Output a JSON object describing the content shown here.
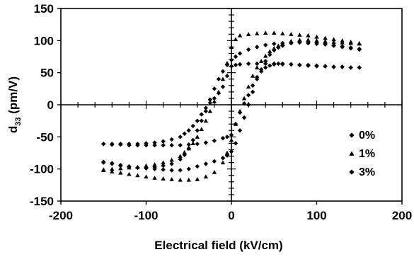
{
  "chart_data": {
    "type": "scatter",
    "title": "",
    "xlabel": "Electrical field (kV/cm)",
    "ylabel_main": "d",
    "ylabel_sub": "33",
    "ylabel_unit": " (pm/V)",
    "xlim": [
      -200,
      200
    ],
    "ylim": [
      -150,
      150
    ],
    "xticks": [
      -200,
      -100,
      0,
      100,
      200
    ],
    "yticks": [
      -150,
      -100,
      -50,
      0,
      50,
      100,
      150
    ],
    "grid": false,
    "legend_position": "lower-right",
    "series": [
      {
        "name": "0%",
        "marker": "diamond",
        "upper_x": [
          150,
          140,
          130,
          120,
          110,
          100,
          90,
          80,
          70,
          60,
          50,
          40,
          30,
          20,
          10,
          5,
          0,
          -5,
          -10,
          -15,
          -20,
          -25,
          -30,
          -35,
          -40,
          -45,
          -50,
          -55,
          -60,
          -70,
          -80,
          -90,
          -100,
          -110,
          -120,
          -130,
          -140,
          -150
        ],
        "upper_y": [
          58,
          58,
          59,
          59,
          60,
          61,
          62,
          62,
          63,
          63,
          64,
          64,
          64,
          64,
          63,
          62,
          60,
          45,
          28,
          18,
          10,
          3,
          -5,
          -15,
          -25,
          -33,
          -40,
          -45,
          -50,
          -54,
          -57,
          -59,
          -60,
          -61,
          -61,
          -61,
          -61,
          -61
        ],
        "lower_x": [
          -150,
          -140,
          -130,
          -120,
          -110,
          -100,
          -90,
          -80,
          -70,
          -60,
          -50,
          -40,
          -30,
          -20,
          -10,
          -5,
          0,
          5,
          10,
          15,
          20,
          25,
          30,
          35,
          40,
          45,
          50,
          55,
          60,
          70,
          80,
          90,
          100,
          110,
          120,
          130,
          140,
          150
        ],
        "lower_y": [
          -61,
          -62,
          -62,
          -63,
          -63,
          -63,
          -63,
          -63,
          -63,
          -63,
          -62,
          -61,
          -59,
          -56,
          -52,
          -50,
          -47,
          -30,
          -12,
          2,
          15,
          30,
          43,
          52,
          58,
          61,
          63,
          64,
          64,
          63,
          62,
          61,
          60,
          60,
          59,
          59,
          58,
          58
        ]
      },
      {
        "name": "1%",
        "marker": "triangle",
        "upper_x": [
          150,
          140,
          130,
          120,
          110,
          100,
          90,
          80,
          70,
          60,
          50,
          40,
          30,
          20,
          10,
          5,
          0,
          -5,
          -10,
          -15,
          -20,
          -25,
          -30,
          -35,
          -40,
          -45,
          -50,
          -55,
          -60,
          -70,
          -80,
          -90,
          -100,
          -110,
          -120,
          -130,
          -140,
          -150
        ],
        "upper_y": [
          96,
          98,
          100,
          102,
          104,
          106,
          108,
          109,
          110,
          111,
          112,
          112,
          111,
          110,
          108,
          102,
          90,
          65,
          40,
          20,
          5,
          -10,
          -25,
          -38,
          -50,
          -60,
          -68,
          -74,
          -80,
          -86,
          -90,
          -93,
          -95,
          -97,
          -98,
          -99,
          -100,
          -101
        ],
        "lower_x": [
          -150,
          -140,
          -130,
          -120,
          -110,
          -100,
          -90,
          -80,
          -70,
          -60,
          -50,
          -40,
          -30,
          -20,
          -10,
          -5,
          0,
          5,
          10,
          15,
          20,
          25,
          30,
          35,
          40,
          45,
          50,
          55,
          60,
          70,
          80,
          90,
          100,
          110,
          120,
          130,
          140,
          150
        ],
        "lower_y": [
          -102,
          -104,
          -106,
          -108,
          -110,
          -112,
          -114,
          -115,
          -116,
          -117,
          -117,
          -116,
          -112,
          -105,
          -90,
          -75,
          -55,
          -30,
          -10,
          10,
          28,
          45,
          58,
          68,
          76,
          83,
          88,
          92,
          95,
          99,
          101,
          101,
          100,
          99,
          98,
          97,
          96,
          95
        ]
      },
      {
        "name": "3%",
        "marker": "diamond",
        "upper_x": [
          150,
          140,
          130,
          120,
          110,
          100,
          90,
          80,
          70,
          60,
          50,
          40,
          30,
          20,
          10,
          5,
          0,
          -5,
          -10,
          -15,
          -20,
          -25,
          -30,
          -35,
          -40,
          -45,
          -50,
          -55,
          -60,
          -70,
          -80,
          -90,
          -100,
          -110,
          -120,
          -130,
          -140,
          -150
        ],
        "upper_y": [
          86,
          88,
          90,
          92,
          94,
          95,
          96,
          97,
          97,
          96,
          95,
          93,
          90,
          86,
          80,
          75,
          70,
          62,
          52,
          40,
          25,
          8,
          -10,
          -25,
          -40,
          -55,
          -68,
          -78,
          -85,
          -92,
          -95,
          -97,
          -98,
          -98,
          -97,
          -95,
          -92,
          -90
        ],
        "lower_x": [
          -150,
          -140,
          -130,
          -120,
          -110,
          -100,
          -90,
          -80,
          -70,
          -60,
          -50,
          -40,
          -30,
          -20,
          -10,
          -5,
          0,
          5,
          10,
          15,
          20,
          25,
          30,
          35,
          40,
          45,
          50,
          55,
          60,
          70,
          80,
          90,
          100,
          110,
          120,
          130,
          140,
          150
        ],
        "lower_y": [
          -89,
          -91,
          -94,
          -96,
          -98,
          -99,
          -100,
          -101,
          -102,
          -102,
          -100,
          -96,
          -92,
          -88,
          -83,
          -79,
          -73,
          -60,
          -40,
          -20,
          0,
          20,
          40,
          55,
          68,
          78,
          85,
          89,
          92,
          96,
          98,
          98,
          97,
          95,
          93,
          91,
          89,
          87
        ]
      }
    ],
    "legend": [
      "0%",
      "1%",
      "3%"
    ]
  }
}
